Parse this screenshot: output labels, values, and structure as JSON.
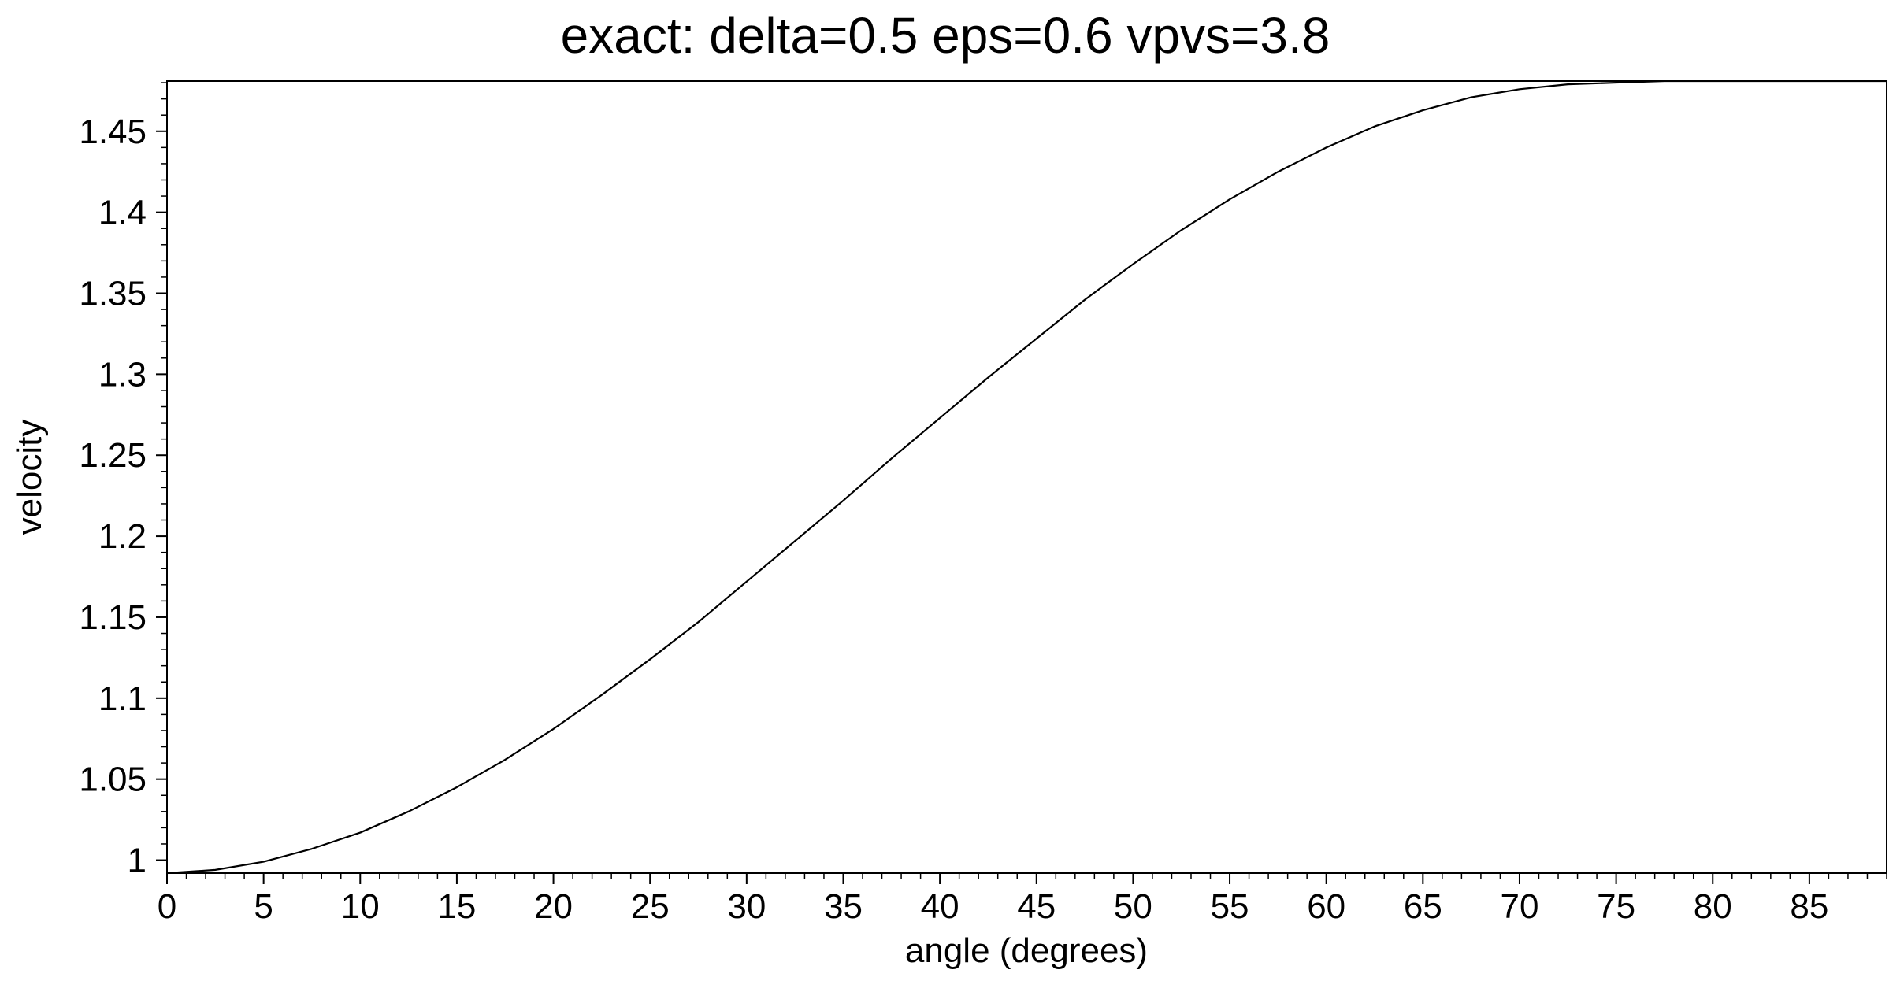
{
  "chart_data": {
    "type": "line",
    "title": "exact: delta=0.5 eps=0.6 vpvs=3.8",
    "xlabel": "angle (degrees)",
    "ylabel": "velocity",
    "xlim": [
      0,
      89
    ],
    "ylim": [
      0.992,
      1.481
    ],
    "xticks": [
      "0",
      "5",
      "10",
      "15",
      "20",
      "25",
      "30",
      "35",
      "40",
      "45",
      "50",
      "55",
      "60",
      "65",
      "70",
      "75",
      "80",
      "85"
    ],
    "yticks": [
      "1",
      "1.05",
      "1.1",
      "1.15",
      "1.2",
      "1.25",
      "1.3",
      "1.35",
      "1.4",
      "1.45"
    ],
    "grid": false,
    "line_color": "#000000",
    "series": [
      {
        "x": [
          0,
          2.5,
          5,
          7.5,
          10,
          12.5,
          15,
          17.5,
          20,
          22.5,
          25,
          27.5,
          30,
          32.5,
          35,
          37.5,
          40,
          42.5,
          45,
          47.5,
          50,
          52.5,
          55,
          57.5,
          60,
          62.5,
          65,
          67.5,
          70,
          72.5,
          75,
          77.5,
          80,
          82.5,
          85,
          87.5,
          89
        ],
        "y": [
          0.992,
          0.994,
          0.999,
          1.007,
          1.017,
          1.03,
          1.045,
          1.062,
          1.081,
          1.102,
          1.124,
          1.147,
          1.172,
          1.197,
          1.222,
          1.248,
          1.273,
          1.298,
          1.322,
          1.346,
          1.368,
          1.389,
          1.408,
          1.425,
          1.44,
          1.453,
          1.463,
          1.471,
          1.476,
          1.479,
          1.48,
          1.481,
          1.481,
          1.481,
          1.481,
          1.481,
          1.481
        ]
      }
    ]
  }
}
